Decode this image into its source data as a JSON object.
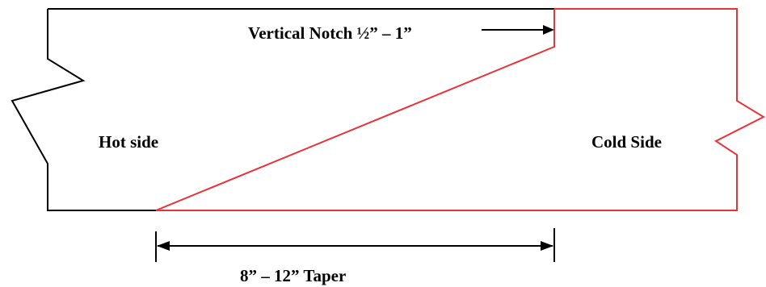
{
  "labels": {
    "notch": "Vertical Notch ½” – 1”",
    "hot": "Hot side",
    "cold": "Cold Side",
    "taper": "8” – 12” Taper"
  },
  "colors": {
    "hot_outline": "#000000",
    "cold_outline": "#e8333a",
    "dimension": "#000000"
  }
}
